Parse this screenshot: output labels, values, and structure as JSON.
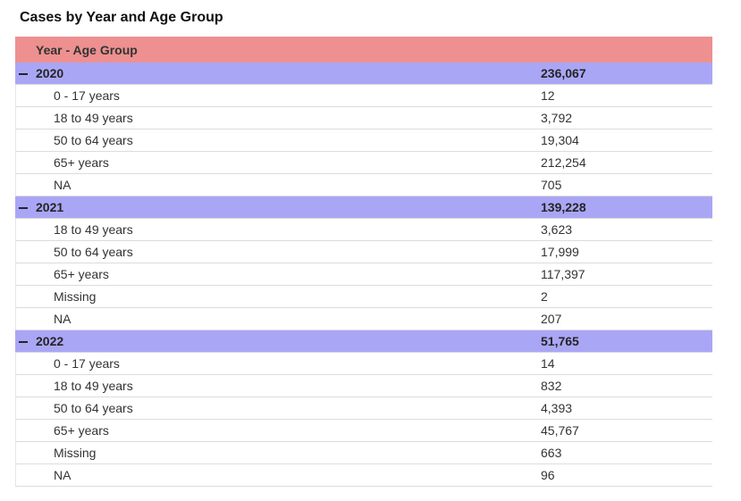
{
  "title": "Cases by Year and Age Group",
  "table": {
    "header": "Year - Age Group",
    "groups": [
      {
        "label": "2020",
        "total": "236,067",
        "rows": [
          [
            "0 - 17 years",
            "12"
          ],
          [
            "18 to 49 years",
            "3,792"
          ],
          [
            "50 to 64 years",
            "19,304"
          ],
          [
            "65+ years",
            "212,254"
          ],
          [
            "NA",
            "705"
          ]
        ]
      },
      {
        "label": "2021",
        "total": "139,228",
        "rows": [
          [
            "18 to 49 years",
            "3,623"
          ],
          [
            "50 to 64 years",
            "17,999"
          ],
          [
            "65+ years",
            "117,397"
          ],
          [
            "Missing",
            "2"
          ],
          [
            "NA",
            "207"
          ]
        ]
      },
      {
        "label": "2022",
        "total": "51,765",
        "rows": [
          [
            "0 - 17 years",
            "14"
          ],
          [
            "18 to 49 years",
            "832"
          ],
          [
            "50 to 64 years",
            "4,393"
          ],
          [
            "65+ years",
            "45,767"
          ],
          [
            "Missing",
            "663"
          ],
          [
            "NA",
            "96"
          ]
        ]
      }
    ]
  }
}
